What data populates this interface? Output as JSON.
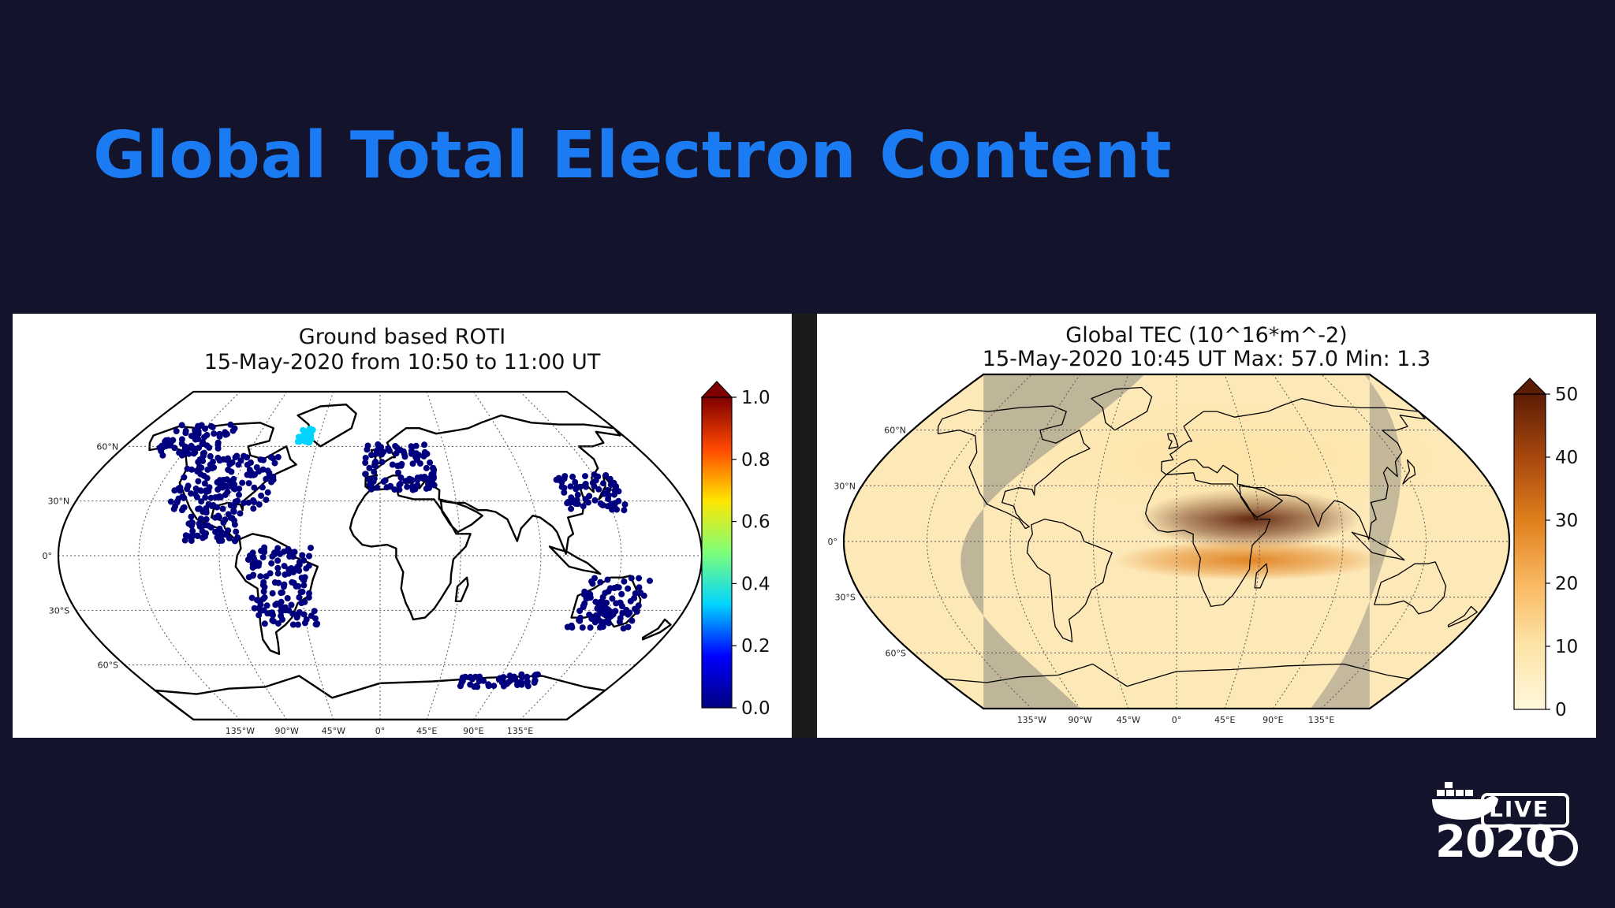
{
  "slide": {
    "title": "Global Total Electron Content"
  },
  "left_panel": {
    "title_line1": "Ground based ROTI",
    "title_line2": "15-May-2020 from 10:50 to 11:00 UT",
    "colorbar_ticks": [
      "0.0",
      "0.2",
      "0.4",
      "0.6",
      "0.8",
      "1.0"
    ],
    "lat_labels": [
      "60°N",
      "30°N",
      "0°",
      "30°S",
      "60°S"
    ],
    "lon_labels": [
      "135°W",
      "90°W",
      "45°W",
      "0°",
      "45°E",
      "90°E",
      "135°E"
    ],
    "colormap": [
      "#00007f",
      "#0000ff",
      "#00d4ff",
      "#7dff7a",
      "#ffe600",
      "#ff4800",
      "#7f0000"
    ]
  },
  "right_panel": {
    "title_line1": "Global TEC (10^16*m^-2)",
    "title_line2": "15-May-2020 10:45 UT  Max: 57.0 Min: 1.3",
    "colorbar_ticks": [
      "0",
      "10",
      "20",
      "30",
      "40",
      "50"
    ],
    "lat_labels": [
      "60°N",
      "30°N",
      "0°",
      "30°S",
      "60°S"
    ],
    "lon_labels": [
      "135°W",
      "90°W",
      "45°W",
      "0°",
      "45°E",
      "90°E",
      "135°E"
    ],
    "colormap": [
      "#fff8dc",
      "#fde4a8",
      "#f9b860",
      "#e07f1c",
      "#a8470d",
      "#5c1d05"
    ]
  },
  "logo": {
    "badge_text": "LIVE",
    "year_text": "2020"
  },
  "chart_data": [
    {
      "type": "scatter",
      "title": "Ground based ROTI",
      "subtitle": "15-May-2020 from 10:50 to 11:00 UT",
      "projection": "Robinson world map",
      "colorbar_range": [
        0.0,
        1.0
      ],
      "colorbar_ticks": [
        0.0,
        0.2,
        0.4,
        0.6,
        0.8,
        1.0
      ],
      "clusters": [
        {
          "region": "North America",
          "lon_range": [
            -125,
            -65
          ],
          "lat_range": [
            25,
            55
          ],
          "value": 0.05
        },
        {
          "region": "Alaska / N. Canada",
          "lon_range": [
            -155,
            -110
          ],
          "lat_range": [
            55,
            72
          ],
          "value": 0.05
        },
        {
          "region": "Central America",
          "lon_range": [
            -110,
            -80
          ],
          "lat_range": [
            8,
            25
          ],
          "value": 0.05
        },
        {
          "region": "South America",
          "lon_range": [
            -75,
            -38
          ],
          "lat_range": [
            -38,
            5
          ],
          "value": 0.05
        },
        {
          "region": "Europe",
          "lon_range": [
            -10,
            35
          ],
          "lat_range": [
            36,
            62
          ],
          "value": 0.05
        },
        {
          "region": "East Asia",
          "lon_range": [
            110,
            145
          ],
          "lat_range": [
            25,
            45
          ],
          "value": 0.05
        },
        {
          "region": "Australia",
          "lon_range": [
            115,
            153
          ],
          "lat_range": [
            -40,
            -12
          ],
          "value": 0.05
        },
        {
          "region": "Antarctica coast",
          "lon_range": [
            60,
            120
          ],
          "lat_range": [
            -72,
            -65
          ],
          "value": 0.05
        },
        {
          "region": "Greenland coast (high ROTI)",
          "lon_range": [
            -60,
            -50
          ],
          "lat_range": [
            62,
            70
          ],
          "value": 0.35
        }
      ]
    },
    {
      "type": "heatmap",
      "title": "Global TEC (10^16*m^-2)",
      "subtitle": "15-May-2020 10:45 UT  Max: 57.0 Min: 1.3",
      "projection": "Robinson world map",
      "colorbar_range": [
        0,
        50
      ],
      "colorbar_ticks": [
        0,
        10,
        20,
        30,
        40,
        50
      ],
      "max": 57.0,
      "min": 1.3,
      "features": [
        {
          "feature": "equatorial crest (peak)",
          "lon_range": [
            0,
            80
          ],
          "lat_range": [
            5,
            20
          ],
          "value": 50
        },
        {
          "feature": "southern equatorial band",
          "lon_range": [
            -10,
            90
          ],
          "lat_range": [
            -15,
            -5
          ],
          "value": 25
        },
        {
          "feature": "night side (shaded)",
          "lon_range": [
            -180,
            -60
          ],
          "lat_range": [
            -90,
            90
          ],
          "value": 8
        },
        {
          "feature": "mid latitudes",
          "lon_range": [
            -60,
            120
          ],
          "lat_range": [
            30,
            60
          ],
          "value": 6
        }
      ]
    }
  ]
}
